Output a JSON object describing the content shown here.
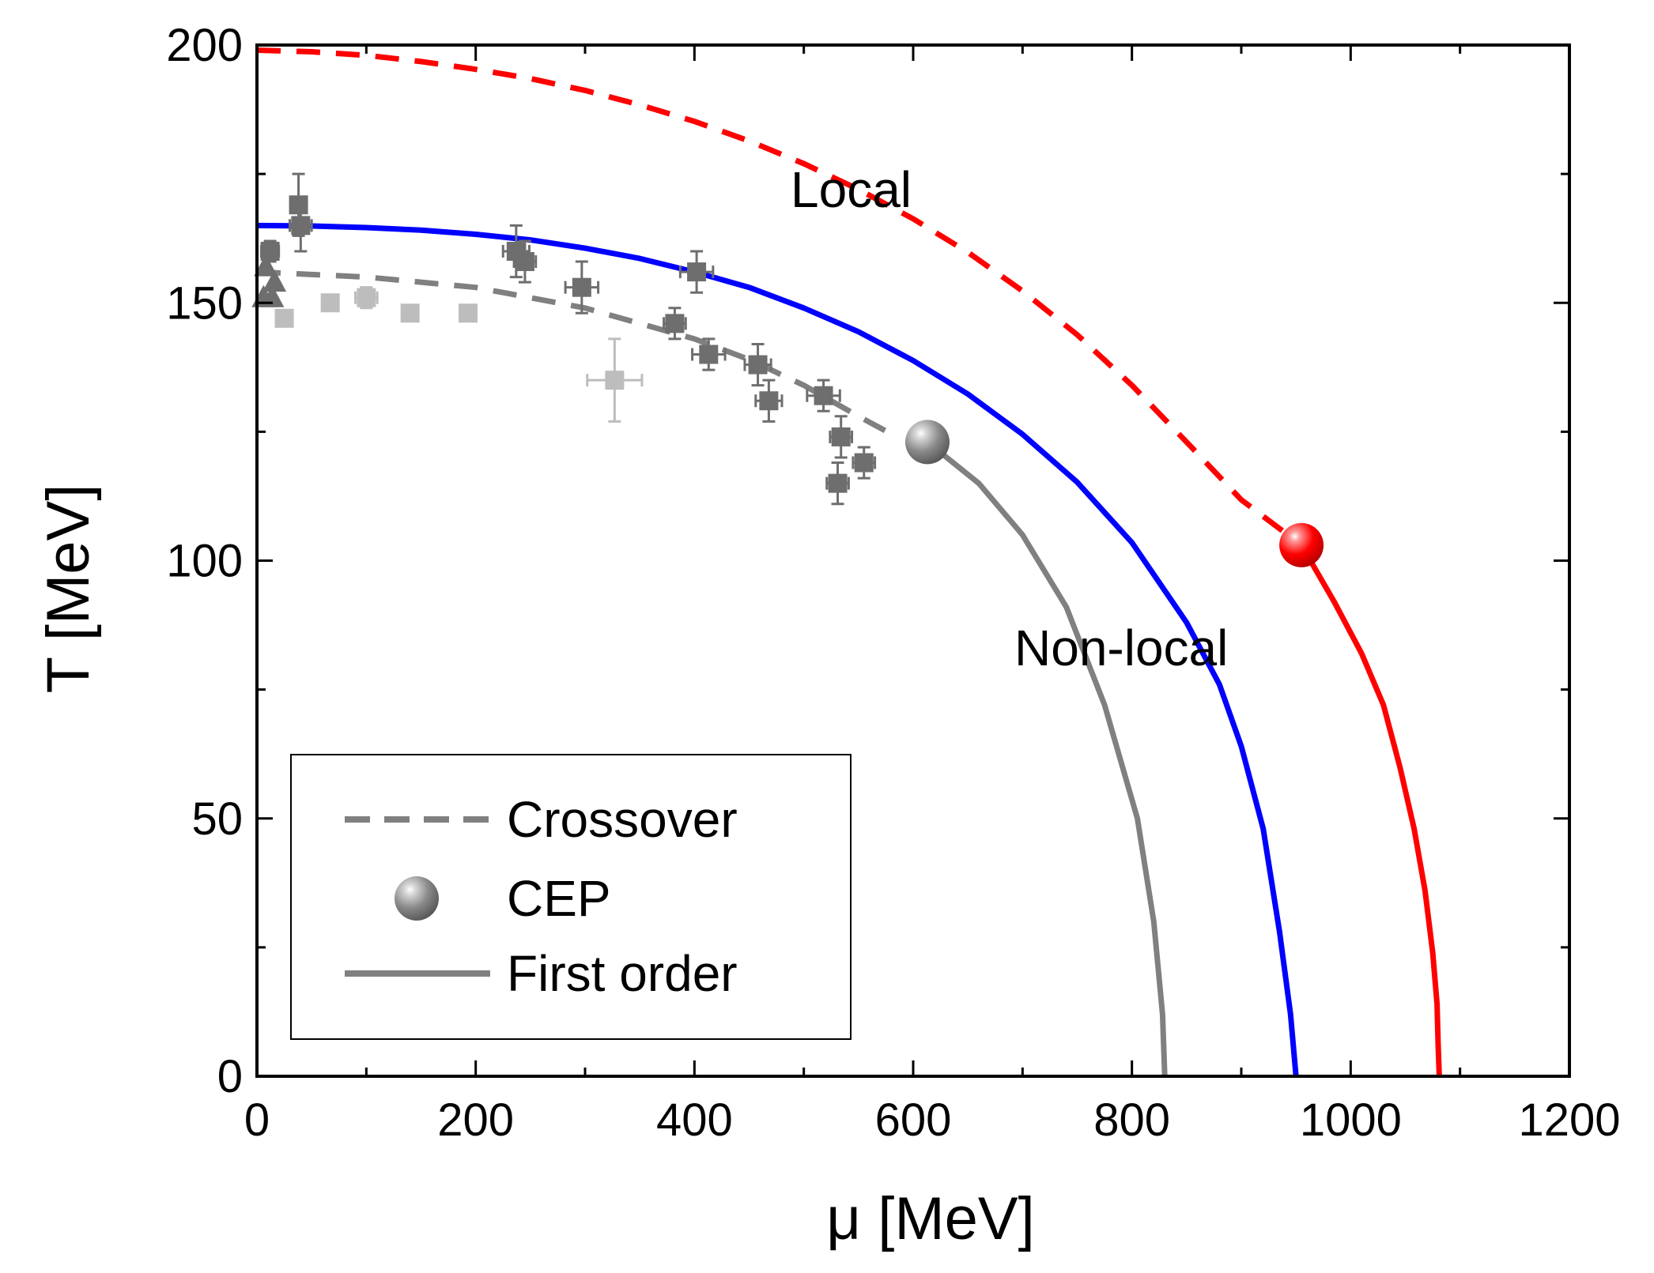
{
  "chart_data": {
    "type": "line",
    "xlabel": "μ [MeV]",
    "ylabel": "T [MeV]",
    "xlim": [
      0,
      1200
    ],
    "ylim": [
      0,
      200
    ],
    "x_ticks": [
      0,
      200,
      400,
      600,
      800,
      1000,
      1200
    ],
    "y_ticks": [
      0,
      50,
      100,
      150,
      200
    ],
    "grid": false,
    "colors": {
      "local": "#ff0000",
      "nonlocal": "#0000ff",
      "reference": "#808080",
      "data_dark": "#6e6e6e",
      "data_light": "#bdbdbd"
    },
    "annotations": {
      "local": "Local",
      "nonlocal": "Non-local"
    },
    "legend": {
      "position": "bottom-left",
      "items": [
        {
          "label": "Crossover",
          "style": "dashed"
        },
        {
          "label": "CEP",
          "style": "sphere"
        },
        {
          "label": "First order",
          "style": "solid"
        }
      ]
    },
    "series": [
      {
        "name": "Local crossover",
        "model": "Local",
        "style": "dashed",
        "color": "#ff0000",
        "x": [
          0,
          50,
          100,
          150,
          200,
          250,
          300,
          350,
          400,
          450,
          500,
          550,
          600,
          650,
          700,
          750,
          800,
          850,
          900,
          955
        ],
        "y": [
          199,
          198.7,
          198,
          196.8,
          195.3,
          193.5,
          191.2,
          188.4,
          185.2,
          181.4,
          177,
          172,
          166.3,
          159.8,
          152.3,
          143.8,
          134,
          123,
          111.8,
          103
        ]
      },
      {
        "name": "Local first order",
        "model": "Local",
        "style": "solid",
        "color": "#ff0000",
        "x": [
          955,
          985,
          1010,
          1030,
          1045,
          1058,
          1068,
          1075,
          1079,
          1080,
          1081
        ],
        "y": [
          103,
          92,
          82,
          72,
          60,
          48,
          36,
          24,
          14,
          6,
          0
        ]
      },
      {
        "name": "Non-local crossover",
        "model": "Non-local",
        "style": "solid",
        "color": "#0000ff",
        "x": [
          0,
          50,
          100,
          150,
          200,
          250,
          300,
          350,
          400,
          450,
          500,
          550,
          600,
          650,
          700,
          750,
          800,
          850,
          880,
          900,
          920,
          935,
          945,
          950
        ],
        "y": [
          165,
          164.9,
          164.6,
          164.1,
          163.3,
          162.2,
          160.6,
          158.6,
          156,
          153,
          149,
          144.4,
          138.8,
          132.3,
          124.5,
          115.2,
          103.5,
          88,
          76,
          64,
          48,
          28,
          12,
          0
        ]
      },
      {
        "name": "Reference crossover",
        "model": "Reference",
        "style": "dashed",
        "color": "#808080",
        "x": [
          0,
          100,
          200,
          300,
          400,
          450,
          500,
          550,
          585
        ],
        "y": [
          156,
          155,
          153,
          149,
          143,
          139,
          134,
          128,
          124
        ]
      },
      {
        "name": "Reference first order",
        "model": "Reference",
        "style": "solid",
        "color": "#808080",
        "x": [
          613,
          660,
          700,
          740,
          775,
          805,
          820,
          828,
          830
        ],
        "y": [
          123,
          115,
          105,
          91,
          72,
          50,
          30,
          12,
          0
        ]
      }
    ],
    "cep": [
      {
        "model": "Local",
        "x": 955,
        "y": 103,
        "color": "#ff0000"
      },
      {
        "model": "Reference",
        "x": 613,
        "y": 123,
        "color": "#808080"
      }
    ],
    "lattice_points_dark": [
      {
        "x": 12,
        "y": 160,
        "ex": 8,
        "ey": 2
      },
      {
        "x": 38,
        "y": 169,
        "ex": 6,
        "ey": 6
      },
      {
        "x": 40,
        "y": 165,
        "ex": 10,
        "ey": 5
      },
      {
        "x": 237,
        "y": 160,
        "ex": 12,
        "ey": 5
      },
      {
        "x": 245,
        "y": 158,
        "ex": 10,
        "ey": 4
      },
      {
        "x": 297,
        "y": 153,
        "ex": 15,
        "ey": 5
      },
      {
        "x": 382,
        "y": 146,
        "ex": 10,
        "ey": 3
      },
      {
        "x": 413,
        "y": 140,
        "ex": 15,
        "ey": 3
      },
      {
        "x": 458,
        "y": 138,
        "ex": 12,
        "ey": 4
      },
      {
        "x": 468,
        "y": 131,
        "ex": 12,
        "ey": 4
      },
      {
        "x": 518,
        "y": 132,
        "ex": 15,
        "ey": 3
      },
      {
        "x": 534,
        "y": 124,
        "ex": 10,
        "ey": 4
      },
      {
        "x": 555,
        "y": 119,
        "ex": 10,
        "ey": 3
      },
      {
        "x": 531,
        "y": 115,
        "ex": 10,
        "ey": 4
      },
      {
        "x": 402,
        "y": 156,
        "ex": 15,
        "ey": 4
      }
    ],
    "lattice_points_light": [
      {
        "x": 25,
        "y": 147,
        "ex": 6,
        "ey": 1
      },
      {
        "x": 67,
        "y": 150,
        "ex": 6,
        "ey": 1
      },
      {
        "x": 100,
        "y": 151,
        "ex": 10,
        "ey": 2
      },
      {
        "x": 140,
        "y": 148,
        "ex": 6,
        "ey": 1
      },
      {
        "x": 193,
        "y": 148,
        "ex": 6,
        "ey": 1
      },
      {
        "x": 327,
        "y": 135,
        "ex": 25,
        "ey": 8
      }
    ],
    "lattice_triangles": [
      {
        "x": 8,
        "y": 157
      },
      {
        "x": 16,
        "y": 154
      },
      {
        "x": 6,
        "y": 151
      },
      {
        "x": 14,
        "y": 151
      }
    ]
  }
}
